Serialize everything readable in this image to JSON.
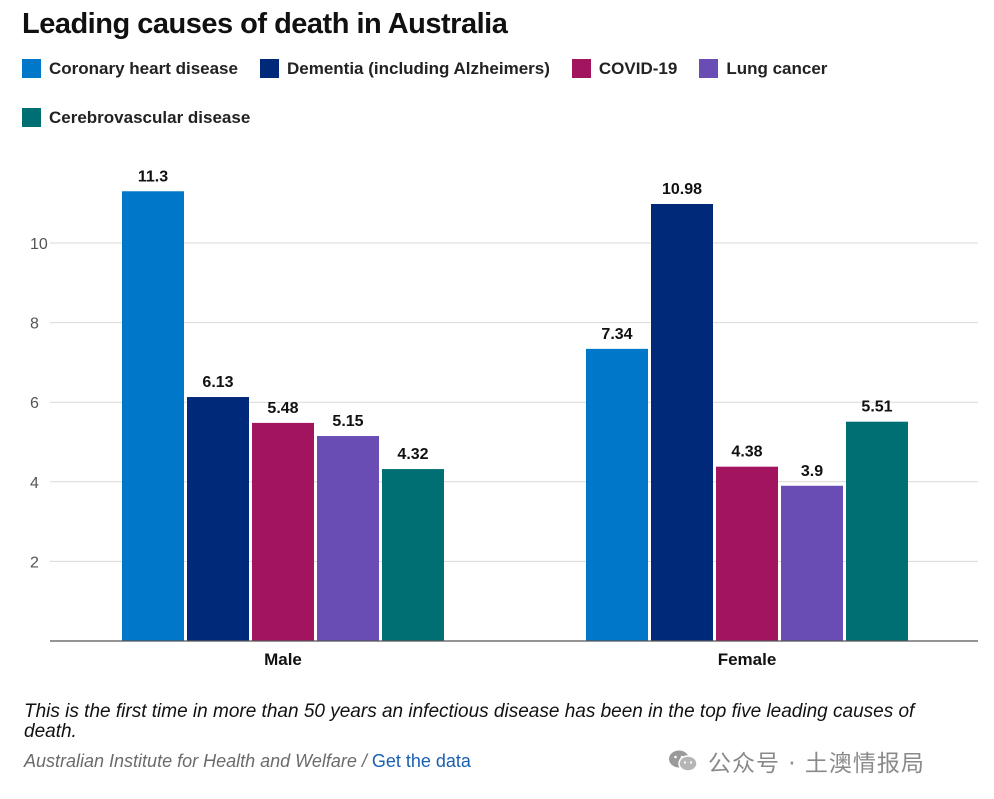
{
  "chart_data": {
    "type": "bar",
    "title": "Leading causes of death in Australia",
    "categories": [
      "Male",
      "Female"
    ],
    "series": [
      {
        "name": "Coronary heart disease",
        "color": "#0077c8",
        "values": [
          11.3,
          7.34
        ]
      },
      {
        "name": "Dementia (including Alzheimers)",
        "color": "#00297a",
        "values": [
          6.13,
          10.98
        ]
      },
      {
        "name": "COVID-19",
        "color": "#a3145f",
        "values": [
          5.48,
          4.38
        ]
      },
      {
        "name": "Lung cancer",
        "color": "#6a4cb5",
        "values": [
          5.15,
          3.9
        ]
      },
      {
        "name": "Cerebrovascular disease",
        "color": "#006f73",
        "values": [
          4.32,
          5.51
        ]
      }
    ],
    "data_labels": [
      [
        "11.3",
        "6.13",
        "5.48",
        "5.15",
        "4.32"
      ],
      [
        "7.34",
        "10.98",
        "4.38",
        "3.9",
        "5.51"
      ]
    ],
    "yticks": [
      2,
      4,
      6,
      8,
      10
    ],
    "ylim": [
      0,
      12
    ],
    "xlabel": "",
    "ylabel": "",
    "grid": true,
    "legend_position": "top"
  },
  "footnote": "This is the first time in more than 50 years an infectious disease has been in the top five leading causes of death.",
  "source": {
    "text": "Australian Institute for Health and Welfare / ",
    "link_label": "Get the data"
  },
  "watermark": {
    "text": "公众号 · 土澳情报局",
    "icon": "wechat-icon"
  }
}
